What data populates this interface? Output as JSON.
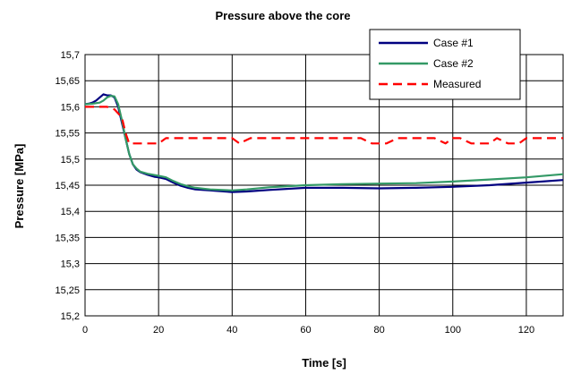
{
  "chart_data": {
    "type": "line",
    "title": "Pressure above the core",
    "xlabel": "Time [s]",
    "ylabel": "Pressure [MPa]",
    "xlim": [
      0,
      130
    ],
    "ylim": [
      15.2,
      15.7
    ],
    "xticks": [
      0,
      20,
      40,
      60,
      80,
      100,
      120
    ],
    "xtick_labels": [
      "0",
      "20",
      "40",
      "60",
      "80",
      "100",
      "120"
    ],
    "yticks": [
      15.2,
      15.25,
      15.3,
      15.35,
      15.4,
      15.45,
      15.5,
      15.55,
      15.6,
      15.65,
      15.7
    ],
    "ytick_labels": [
      "15,2",
      "15,25",
      "15,3",
      "15,35",
      "15,4",
      "15,45",
      "15,5",
      "15,55",
      "15,6",
      "15,65",
      "15,7"
    ],
    "grid": true,
    "legend_position": "top-right",
    "series": [
      {
        "name": "Case #1",
        "color": "#000080",
        "dash": "solid",
        "x": [
          0,
          1,
          2,
          3,
          4,
          5,
          6,
          7,
          8,
          9,
          10,
          11,
          12,
          13,
          14,
          15,
          17,
          19,
          20,
          22,
          24,
          26,
          28,
          30,
          34,
          38,
          40,
          44,
          50,
          60,
          70,
          80,
          90,
          100,
          110,
          120,
          130
        ],
        "y": [
          15.605,
          15.606,
          15.608,
          15.612,
          15.618,
          15.624,
          15.622,
          15.622,
          15.618,
          15.6,
          15.57,
          15.54,
          15.51,
          15.49,
          15.48,
          15.475,
          15.47,
          15.466,
          15.465,
          15.462,
          15.455,
          15.449,
          15.445,
          15.442,
          15.44,
          15.438,
          15.437,
          15.438,
          15.441,
          15.445,
          15.445,
          15.444,
          15.445,
          15.447,
          15.45,
          15.455,
          15.46
        ]
      },
      {
        "name": "Case #2",
        "color": "#339966",
        "dash": "solid",
        "x": [
          0,
          2,
          4,
          5,
          6,
          7,
          8,
          9,
          10,
          11,
          12,
          13,
          14,
          15,
          17,
          20,
          22,
          24,
          26,
          28,
          30,
          34,
          40,
          44,
          50,
          60,
          70,
          80,
          90,
          100,
          110,
          120,
          130
        ],
        "y": [
          15.605,
          15.606,
          15.608,
          15.612,
          15.618,
          15.621,
          15.62,
          15.605,
          15.575,
          15.54,
          15.51,
          15.49,
          15.482,
          15.476,
          15.472,
          15.468,
          15.465,
          15.458,
          15.452,
          15.448,
          15.445,
          15.442,
          15.44,
          15.442,
          15.446,
          15.45,
          15.452,
          15.453,
          15.454,
          15.457,
          15.461,
          15.465,
          15.471
        ]
      },
      {
        "name": "Measured",
        "color": "#ff0000",
        "dash": "dashed",
        "x": [
          0,
          3,
          6,
          8,
          10,
          11,
          12,
          14,
          16,
          18,
          20,
          22,
          24,
          30,
          40,
          42,
          45,
          50,
          60,
          70,
          75,
          78,
          80,
          82,
          85,
          90,
          95,
          98,
          100,
          102,
          105,
          110,
          112,
          115,
          118,
          120,
          125,
          130
        ],
        "y": [
          15.6,
          15.6,
          15.6,
          15.595,
          15.58,
          15.55,
          15.53,
          15.53,
          15.53,
          15.53,
          15.53,
          15.54,
          15.54,
          15.54,
          15.54,
          15.53,
          15.54,
          15.54,
          15.54,
          15.54,
          15.54,
          15.53,
          15.53,
          15.53,
          15.54,
          15.54,
          15.54,
          15.53,
          15.54,
          15.54,
          15.53,
          15.53,
          15.54,
          15.53,
          15.53,
          15.54,
          15.54,
          15.54
        ]
      }
    ]
  }
}
